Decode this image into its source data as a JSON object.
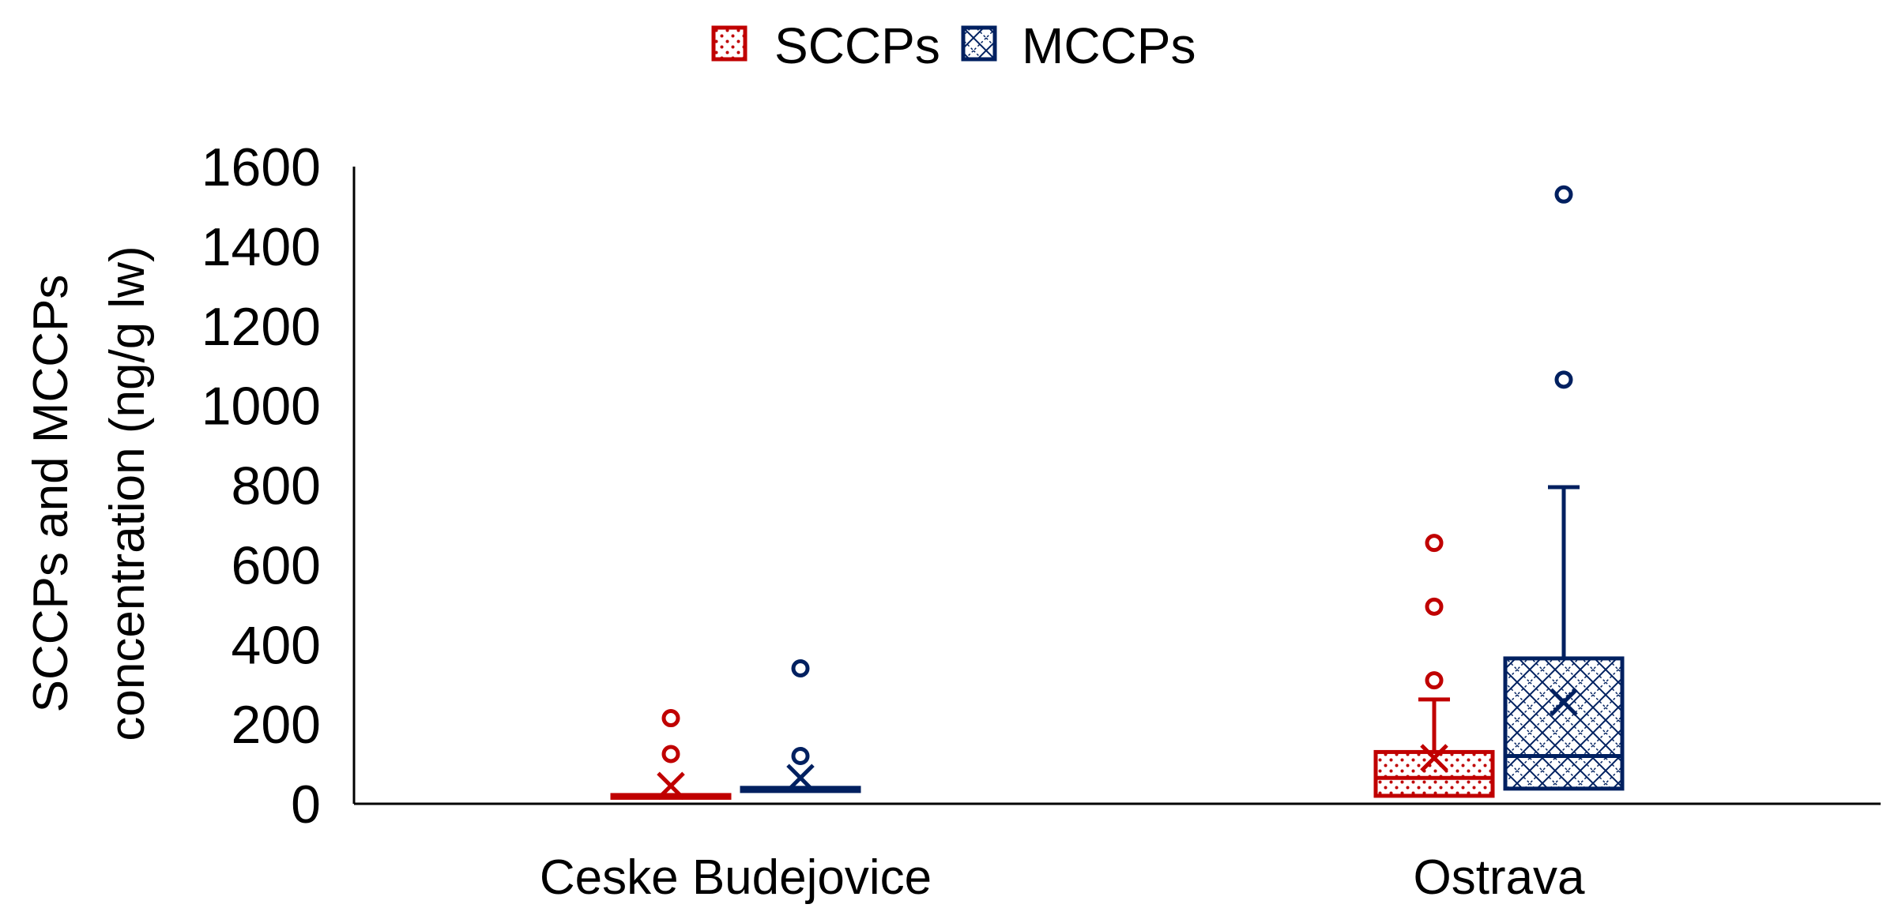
{
  "chart_data": {
    "type": "box",
    "categories": [
      "Ceske Budejovice",
      "Ostrava"
    ],
    "ylabel": [
      "SCCPs and MCCPs",
      "concentration (ng/g lw)"
    ],
    "ylim": [
      0,
      1600
    ],
    "yticks": [
      0,
      200,
      400,
      600,
      800,
      1000,
      1200,
      1400,
      1600
    ],
    "grid": false,
    "legend": "top-center",
    "series": [
      {
        "name": "SCCPs",
        "color": "#C00000",
        "pattern": "dots",
        "boxes": [
          {
            "min": 15,
            "q1": 15,
            "median": 18,
            "q3": 22,
            "max": 22,
            "mean": 45,
            "outliers": [
              125,
              215
            ]
          },
          {
            "min": 20,
            "q1": 20,
            "median": 65,
            "q3": 130,
            "max": 262,
            "mean": 115,
            "outliers": [
              310,
              495,
              655
            ]
          }
        ]
      },
      {
        "name": "MCCPs",
        "color": "#002060",
        "pattern": "crosshatch",
        "boxes": [
          {
            "min": 32,
            "q1": 32,
            "median": 36,
            "q3": 40,
            "max": 40,
            "mean": 65,
            "outliers": [
              120,
              340
            ]
          },
          {
            "min": 38,
            "q1": 38,
            "median": 120,
            "q3": 365,
            "max": 795,
            "mean": 255,
            "outliers": [
              1065,
              1530
            ]
          }
        ]
      }
    ]
  }
}
